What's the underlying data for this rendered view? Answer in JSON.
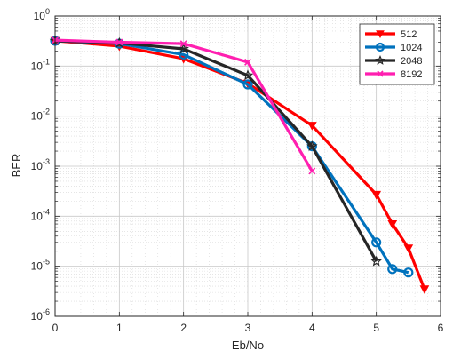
{
  "chart_data": {
    "type": "line",
    "xlabel": "Eb/No",
    "ylabel": "BER",
    "xlim": [
      0,
      6
    ],
    "ylim": [
      1e-06,
      1
    ],
    "yscale": "log",
    "grid": true,
    "minor_grid": true,
    "legend_position": "top-right",
    "x_ticks": [
      "0",
      "1",
      "2",
      "3",
      "4",
      "5",
      "6"
    ],
    "y_ticks": [
      {
        "base": "10",
        "exp": "0"
      },
      {
        "base": "10",
        "exp": "-1"
      },
      {
        "base": "10",
        "exp": "-2"
      },
      {
        "base": "10",
        "exp": "-3"
      },
      {
        "base": "10",
        "exp": "-4"
      },
      {
        "base": "10",
        "exp": "-5"
      },
      {
        "base": "10",
        "exp": "-6"
      }
    ],
    "series": [
      {
        "name": "512",
        "color": "#ff0000",
        "marker": "triangle-down",
        "x": [
          0,
          1,
          2,
          3,
          4,
          5,
          5.25,
          5.5,
          5.75
        ],
        "y": [
          0.32,
          0.25,
          0.14,
          0.045,
          0.0065,
          0.00027,
          7e-05,
          2.3e-05,
          3.5e-06
        ]
      },
      {
        "name": "1024",
        "color": "#0072bd",
        "marker": "circle",
        "x": [
          0,
          1,
          2,
          3,
          4,
          5,
          5.25,
          5.5
        ],
        "y": [
          0.32,
          0.28,
          0.17,
          0.043,
          0.0025,
          3e-05,
          8.8e-06,
          7.5e-06
        ]
      },
      {
        "name": "2048",
        "color": "#262626",
        "marker": "pentagram",
        "x": [
          0,
          1,
          2,
          3,
          4,
          5
        ],
        "y": [
          0.32,
          0.29,
          0.22,
          0.065,
          0.0025,
          1.25e-05
        ]
      },
      {
        "name": "8192",
        "color": "#ff1fb0",
        "marker": "x",
        "x": [
          0,
          1,
          2,
          3,
          4
        ],
        "y": [
          0.33,
          0.3,
          0.28,
          0.12,
          0.0008
        ]
      }
    ]
  }
}
